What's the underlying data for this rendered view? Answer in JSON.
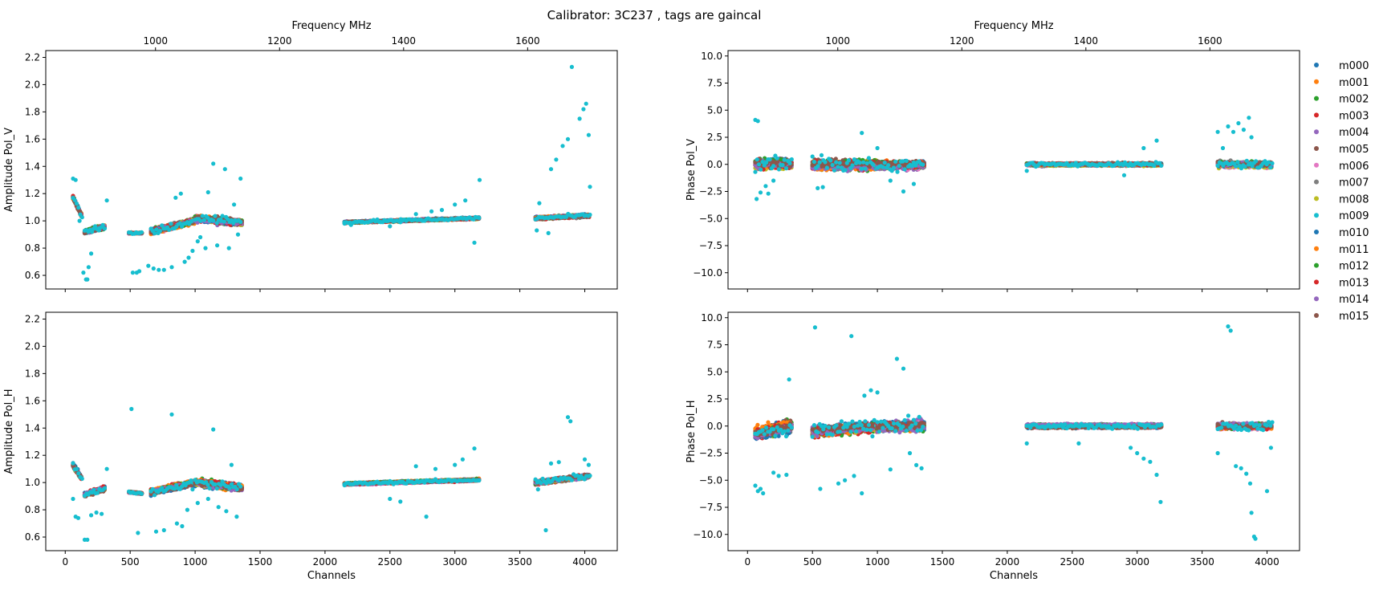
{
  "suptitle": "Calibrator: 3C237 , tags are gaincal",
  "legend": {
    "placement": "right-outside",
    "entries": [
      "m000",
      "m001",
      "m002",
      "m003",
      "m004",
      "m005",
      "m006",
      "m007",
      "m008",
      "m009",
      "m010",
      "m011",
      "m012",
      "m013",
      "m014",
      "m015"
    ],
    "colors": [
      "#1f77b4",
      "#ff7f0e",
      "#2ca02c",
      "#d62728",
      "#9467bd",
      "#8c564b",
      "#e377c2",
      "#7f7f7f",
      "#bcbd22",
      "#17becf",
      "#1f77b4",
      "#ff7f0e",
      "#2ca02c",
      "#d62728",
      "#9467bd",
      "#8c564b"
    ]
  },
  "chart_data": [
    {
      "type": "scatter",
      "panel": "top-left",
      "ylabel": "Amplitude Pol_V",
      "xlabel": "",
      "top_xlabel": "Frequency MHz",
      "xlim": [
        -150,
        4250
      ],
      "ylim": [
        0.5,
        2.25
      ],
      "yticks": [
        0.6,
        0.8,
        1.0,
        1.2,
        1.4,
        1.6,
        1.8,
        2.0,
        2.2
      ],
      "ytick_labels": [
        "0.6",
        "0.8",
        "1.0",
        "1.2",
        "1.4",
        "1.6",
        "1.8",
        "2.0",
        "2.2"
      ],
      "xticks": [
        0,
        500,
        1000,
        1500,
        2000,
        2500,
        3000,
        3500,
        4000
      ],
      "show_xtick_labels": false,
      "top_ticks": [
        {
          "channel": 695,
          "label": "1000"
        },
        {
          "channel": 1650,
          "label": "1200"
        },
        {
          "channel": 2605,
          "label": "1400"
        },
        {
          "channel": 3560,
          "label": "1600"
        }
      ],
      "base": 1.0,
      "segments": [
        {
          "x": [
            60,
            130
          ],
          "values": [
            1.17,
            1.03
          ],
          "spread": 0.03
        },
        {
          "x": [
            150,
            310
          ],
          "values": [
            0.92,
            0.96
          ],
          "spread": 0.03
        },
        {
          "x": [
            490,
            590
          ],
          "values": [
            0.91,
            0.91
          ],
          "spread": 0.01
        },
        {
          "x": [
            660,
            1000
          ],
          "values": [
            0.92,
            1.0
          ],
          "spread": 0.04
        },
        {
          "x": [
            1000,
            1360
          ],
          "values": [
            1.02,
            0.99
          ],
          "spread": 0.05
        },
        {
          "x": [
            2150,
            3190
          ],
          "values": [
            0.99,
            1.02
          ],
          "spread": 0.015
        },
        {
          "x": [
            3620,
            4040
          ],
          "values": [
            1.02,
            1.04
          ],
          "spread": 0.02
        }
      ],
      "outlier_series": "m009",
      "outliers": [
        [
          60,
          1.31
        ],
        [
          80,
          1.3
        ],
        [
          110,
          1.0
        ],
        [
          140,
          0.62
        ],
        [
          160,
          0.57
        ],
        [
          170,
          0.57
        ],
        [
          180,
          0.66
        ],
        [
          200,
          0.76
        ],
        [
          230,
          0.96
        ],
        [
          260,
          0.93
        ],
        [
          320,
          1.15
        ],
        [
          520,
          0.62
        ],
        [
          550,
          0.62
        ],
        [
          570,
          0.63
        ],
        [
          640,
          0.67
        ],
        [
          680,
          0.65
        ],
        [
          720,
          0.64
        ],
        [
          760,
          0.64
        ],
        [
          820,
          0.66
        ],
        [
          850,
          1.17
        ],
        [
          890,
          1.2
        ],
        [
          920,
          0.7
        ],
        [
          950,
          0.73
        ],
        [
          980,
          0.78
        ],
        [
          1020,
          0.85
        ],
        [
          1040,
          0.88
        ],
        [
          1080,
          0.8
        ],
        [
          1100,
          1.21
        ],
        [
          1140,
          1.42
        ],
        [
          1170,
          0.82
        ],
        [
          1200,
          1.0
        ],
        [
          1230,
          1.38
        ],
        [
          1260,
          0.8
        ],
        [
          1300,
          1.12
        ],
        [
          1330,
          0.9
        ],
        [
          1350,
          1.31
        ],
        [
          2150,
          0.98
        ],
        [
          2200,
          0.97
        ],
        [
          2500,
          0.96
        ],
        [
          2580,
          0.99
        ],
        [
          2700,
          1.05
        ],
        [
          2820,
          1.07
        ],
        [
          2900,
          1.08
        ],
        [
          3000,
          1.12
        ],
        [
          3080,
          1.15
        ],
        [
          3150,
          0.84
        ],
        [
          3190,
          1.3
        ],
        [
          3630,
          0.93
        ],
        [
          3650,
          1.13
        ],
        [
          3720,
          0.91
        ],
        [
          3740,
          1.38
        ],
        [
          3780,
          1.45
        ],
        [
          3830,
          1.55
        ],
        [
          3870,
          1.6
        ],
        [
          3900,
          2.13
        ],
        [
          3960,
          1.75
        ],
        [
          3990,
          1.82
        ],
        [
          4010,
          1.86
        ],
        [
          4030,
          1.63
        ],
        [
          4040,
          1.25
        ]
      ]
    },
    {
      "type": "scatter",
      "panel": "top-right",
      "ylabel": "Phase Pol_V",
      "xlabel": "",
      "top_xlabel": "Frequency MHz",
      "xlim": [
        -150,
        4250
      ],
      "ylim": [
        -11.5,
        10.5
      ],
      "yticks": [
        -10.0,
        -7.5,
        -5.0,
        -2.5,
        0.0,
        2.5,
        5.0,
        7.5,
        10.0
      ],
      "ytick_labels": [
        "−10.0",
        "−7.5",
        "−5.0",
        "−2.5",
        "0.0",
        "2.5",
        "5.0",
        "7.5",
        "10.0"
      ],
      "xticks": [
        0,
        500,
        1000,
        1500,
        2000,
        2500,
        3000,
        3500,
        4000
      ],
      "show_xtick_labels": false,
      "top_ticks": [
        {
          "channel": 695,
          "label": "1000"
        },
        {
          "channel": 1650,
          "label": "1200"
        },
        {
          "channel": 2605,
          "label": "1400"
        },
        {
          "channel": 3560,
          "label": "1600"
        }
      ],
      "base": 0.0,
      "segments": [
        {
          "x": [
            60,
            340
          ],
          "values": [
            0.0,
            0.0
          ],
          "spread": 1.0
        },
        {
          "x": [
            500,
            1000
          ],
          "values": [
            0.0,
            0.0
          ],
          "spread": 0.9
        },
        {
          "x": [
            1000,
            1360
          ],
          "values": [
            0.0,
            0.0
          ],
          "spread": 0.8
        },
        {
          "x": [
            2150,
            3190
          ],
          "values": [
            0.0,
            0.0
          ],
          "spread": 0.25
        },
        {
          "x": [
            3620,
            4040
          ],
          "values": [
            0.0,
            0.0
          ],
          "spread": 0.5
        }
      ],
      "outlier_series": "m009",
      "outliers": [
        [
          60,
          4.1
        ],
        [
          80,
          4.0
        ],
        [
          70,
          -3.2
        ],
        [
          100,
          -2.6
        ],
        [
          140,
          -2.0
        ],
        [
          160,
          -2.7
        ],
        [
          200,
          -1.5
        ],
        [
          540,
          -2.2
        ],
        [
          580,
          -2.1
        ],
        [
          880,
          2.9
        ],
        [
          1000,
          1.5
        ],
        [
          1100,
          -1.5
        ],
        [
          1200,
          -2.5
        ],
        [
          1280,
          -1.8
        ],
        [
          2150,
          -0.6
        ],
        [
          2900,
          -1.0
        ],
        [
          3050,
          1.5
        ],
        [
          3150,
          2.2
        ],
        [
          3620,
          3.0
        ],
        [
          3660,
          1.5
        ],
        [
          3700,
          3.5
        ],
        [
          3740,
          3.0
        ],
        [
          3780,
          3.8
        ],
        [
          3820,
          3.2
        ],
        [
          3860,
          4.3
        ],
        [
          3880,
          2.5
        ]
      ]
    },
    {
      "type": "scatter",
      "panel": "bottom-left",
      "ylabel": "Amplitude Pol_H",
      "xlabel": "Channels",
      "xlim": [
        -150,
        4250
      ],
      "ylim": [
        0.5,
        2.25
      ],
      "yticks": [
        0.6,
        0.8,
        1.0,
        1.2,
        1.4,
        1.6,
        1.8,
        2.0,
        2.2
      ],
      "ytick_labels": [
        "0.6",
        "0.8",
        "1.0",
        "1.2",
        "1.4",
        "1.6",
        "1.8",
        "2.0",
        "2.2"
      ],
      "xticks": [
        0,
        500,
        1000,
        1500,
        2000,
        2500,
        3000,
        3500,
        4000
      ],
      "xtick_labels": [
        "0",
        "500",
        "1000",
        "1500",
        "2000",
        "2500",
        "3000",
        "3500",
        "4000"
      ],
      "show_xtick_labels": true,
      "base": 1.0,
      "segments": [
        {
          "x": [
            60,
            130
          ],
          "values": [
            1.13,
            1.03
          ],
          "spread": 0.03
        },
        {
          "x": [
            150,
            310
          ],
          "values": [
            0.91,
            0.96
          ],
          "spread": 0.03
        },
        {
          "x": [
            490,
            590
          ],
          "values": [
            0.93,
            0.92
          ],
          "spread": 0.01
        },
        {
          "x": [
            660,
            1000
          ],
          "values": [
            0.93,
            1.0
          ],
          "spread": 0.04
        },
        {
          "x": [
            1000,
            1360
          ],
          "values": [
            1.0,
            0.96
          ],
          "spread": 0.05
        },
        {
          "x": [
            2150,
            3190
          ],
          "values": [
            0.99,
            1.02
          ],
          "spread": 0.015
        },
        {
          "x": [
            3620,
            4040
          ],
          "values": [
            1.0,
            1.05
          ],
          "spread": 0.03
        }
      ],
      "outlier_series": "m009",
      "outliers": [
        [
          60,
          0.88
        ],
        [
          80,
          0.75
        ],
        [
          100,
          0.74
        ],
        [
          150,
          0.58
        ],
        [
          170,
          0.58
        ],
        [
          200,
          0.76
        ],
        [
          240,
          0.78
        ],
        [
          280,
          0.77
        ],
        [
          320,
          1.1
        ],
        [
          510,
          1.54
        ],
        [
          560,
          0.63
        ],
        [
          700,
          0.64
        ],
        [
          760,
          0.65
        ],
        [
          820,
          1.5
        ],
        [
          860,
          0.7
        ],
        [
          900,
          0.68
        ],
        [
          940,
          0.8
        ],
        [
          980,
          0.95
        ],
        [
          1020,
          0.85
        ],
        [
          1100,
          0.88
        ],
        [
          1140,
          1.39
        ],
        [
          1180,
          0.82
        ],
        [
          1240,
          0.79
        ],
        [
          1280,
          1.13
        ],
        [
          1320,
          0.75
        ],
        [
          2150,
          0.98
        ],
        [
          2500,
          0.88
        ],
        [
          2580,
          0.86
        ],
        [
          2700,
          1.12
        ],
        [
          2780,
          0.75
        ],
        [
          2850,
          1.1
        ],
        [
          3000,
          1.13
        ],
        [
          3060,
          1.17
        ],
        [
          3150,
          1.25
        ],
        [
          3640,
          0.95
        ],
        [
          3700,
          0.65
        ],
        [
          3740,
          1.14
        ],
        [
          3800,
          1.15
        ],
        [
          3870,
          1.48
        ],
        [
          3890,
          1.45
        ],
        [
          4000,
          1.17
        ],
        [
          4030,
          1.13
        ]
      ]
    },
    {
      "type": "scatter",
      "panel": "bottom-right",
      "ylabel": "Phase Pol_H",
      "xlabel": "Channels",
      "xlim": [
        -150,
        4250
      ],
      "ylim": [
        -11.5,
        10.5
      ],
      "yticks": [
        -10.0,
        -7.5,
        -5.0,
        -2.5,
        0.0,
        2.5,
        5.0,
        7.5,
        10.0
      ],
      "ytick_labels": [
        "−10.0",
        "−7.5",
        "−5.0",
        "−2.5",
        "0.0",
        "2.5",
        "5.0",
        "7.5",
        "10.0"
      ],
      "xticks": [
        0,
        500,
        1000,
        1500,
        2000,
        2500,
        3000,
        3500,
        4000
      ],
      "xtick_labels": [
        "0",
        "500",
        "1000",
        "1500",
        "2000",
        "2500",
        "3000",
        "3500",
        "4000"
      ],
      "show_xtick_labels": true,
      "base": 0.0,
      "segments": [
        {
          "x": [
            60,
            340
          ],
          "values": [
            -0.8,
            0.0
          ],
          "spread": 1.2
        },
        {
          "x": [
            500,
            1000
          ],
          "values": [
            -0.5,
            0.0
          ],
          "spread": 1.0
        },
        {
          "x": [
            1000,
            1360
          ],
          "values": [
            0.0,
            0.0
          ],
          "spread": 1.0
        },
        {
          "x": [
            2150,
            3190
          ],
          "values": [
            0.0,
            0.0
          ],
          "spread": 0.3
        },
        {
          "x": [
            3620,
            4040
          ],
          "values": [
            0.0,
            0.0
          ],
          "spread": 0.6
        }
      ],
      "outlier_series": "m009",
      "outliers": [
        [
          60,
          -5.5
        ],
        [
          80,
          -6.0
        ],
        [
          100,
          -5.8
        ],
        [
          120,
          -6.2
        ],
        [
          200,
          -4.3
        ],
        [
          240,
          -4.6
        ],
        [
          300,
          -4.5
        ],
        [
          320,
          4.3
        ],
        [
          520,
          9.1
        ],
        [
          560,
          -5.8
        ],
        [
          700,
          -5.3
        ],
        [
          750,
          -5.0
        ],
        [
          800,
          8.3
        ],
        [
          820,
          -4.6
        ],
        [
          880,
          -6.2
        ],
        [
          900,
          2.8
        ],
        [
          950,
          3.3
        ],
        [
          1000,
          3.1
        ],
        [
          1100,
          -4.0
        ],
        [
          1150,
          6.2
        ],
        [
          1200,
          5.3
        ],
        [
          1250,
          -2.5
        ],
        [
          1300,
          -3.6
        ],
        [
          1340,
          -3.9
        ],
        [
          2150,
          -1.6
        ],
        [
          2550,
          -1.6
        ],
        [
          2950,
          -2.0
        ],
        [
          3000,
          -2.5
        ],
        [
          3050,
          -3.0
        ],
        [
          3100,
          -3.3
        ],
        [
          3150,
          -4.5
        ],
        [
          3180,
          -7.0
        ],
        [
          3620,
          -2.5
        ],
        [
          3700,
          9.2
        ],
        [
          3720,
          8.8
        ],
        [
          3760,
          -3.7
        ],
        [
          3800,
          -3.9
        ],
        [
          3840,
          -4.4
        ],
        [
          3870,
          -5.3
        ],
        [
          3880,
          -8.0
        ],
        [
          3900,
          -10.2
        ],
        [
          3910,
          -10.4
        ],
        [
          4000,
          -6.0
        ],
        [
          4030,
          -2.0
        ]
      ]
    }
  ]
}
